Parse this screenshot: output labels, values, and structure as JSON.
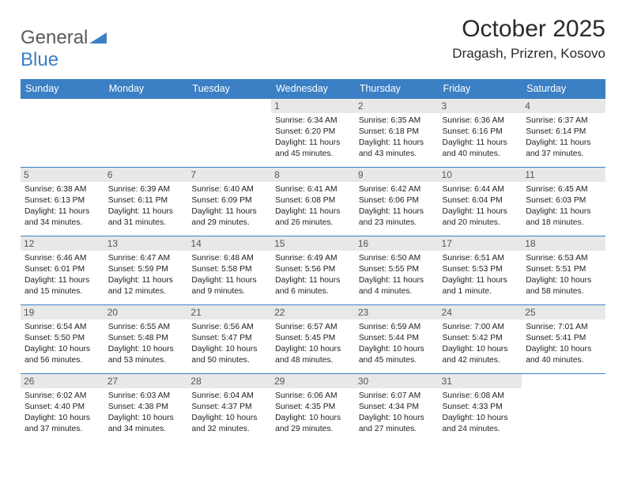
{
  "logo": {
    "text1": "General",
    "text2": "Blue"
  },
  "title": "October 2025",
  "location": "Dragash, Prizren, Kosovo",
  "weekdays": [
    "Sunday",
    "Monday",
    "Tuesday",
    "Wednesday",
    "Thursday",
    "Friday",
    "Saturday"
  ],
  "colors": {
    "header_bg": "#3b7fc4",
    "header_text": "#ffffff",
    "day_bg": "#e8e8e8",
    "border": "#3b7fc4",
    "text": "#222222",
    "logo_gray": "#5a5a5a",
    "logo_blue": "#3b7fc4"
  },
  "fonts": {
    "title_size": 30,
    "location_size": 17,
    "weekday_size": 12.5,
    "day_num_size": 12,
    "body_size": 10.3
  },
  "weeks": [
    [
      null,
      null,
      null,
      {
        "n": "1",
        "sunrise": "6:34 AM",
        "sunset": "6:20 PM",
        "daylight": "11 hours and 45 minutes."
      },
      {
        "n": "2",
        "sunrise": "6:35 AM",
        "sunset": "6:18 PM",
        "daylight": "11 hours and 43 minutes."
      },
      {
        "n": "3",
        "sunrise": "6:36 AM",
        "sunset": "6:16 PM",
        "daylight": "11 hours and 40 minutes."
      },
      {
        "n": "4",
        "sunrise": "6:37 AM",
        "sunset": "6:14 PM",
        "daylight": "11 hours and 37 minutes."
      }
    ],
    [
      {
        "n": "5",
        "sunrise": "6:38 AM",
        "sunset": "6:13 PM",
        "daylight": "11 hours and 34 minutes."
      },
      {
        "n": "6",
        "sunrise": "6:39 AM",
        "sunset": "6:11 PM",
        "daylight": "11 hours and 31 minutes."
      },
      {
        "n": "7",
        "sunrise": "6:40 AM",
        "sunset": "6:09 PM",
        "daylight": "11 hours and 29 minutes."
      },
      {
        "n": "8",
        "sunrise": "6:41 AM",
        "sunset": "6:08 PM",
        "daylight": "11 hours and 26 minutes."
      },
      {
        "n": "9",
        "sunrise": "6:42 AM",
        "sunset": "6:06 PM",
        "daylight": "11 hours and 23 minutes."
      },
      {
        "n": "10",
        "sunrise": "6:44 AM",
        "sunset": "6:04 PM",
        "daylight": "11 hours and 20 minutes."
      },
      {
        "n": "11",
        "sunrise": "6:45 AM",
        "sunset": "6:03 PM",
        "daylight": "11 hours and 18 minutes."
      }
    ],
    [
      {
        "n": "12",
        "sunrise": "6:46 AM",
        "sunset": "6:01 PM",
        "daylight": "11 hours and 15 minutes."
      },
      {
        "n": "13",
        "sunrise": "6:47 AM",
        "sunset": "5:59 PM",
        "daylight": "11 hours and 12 minutes."
      },
      {
        "n": "14",
        "sunrise": "6:48 AM",
        "sunset": "5:58 PM",
        "daylight": "11 hours and 9 minutes."
      },
      {
        "n": "15",
        "sunrise": "6:49 AM",
        "sunset": "5:56 PM",
        "daylight": "11 hours and 6 minutes."
      },
      {
        "n": "16",
        "sunrise": "6:50 AM",
        "sunset": "5:55 PM",
        "daylight": "11 hours and 4 minutes."
      },
      {
        "n": "17",
        "sunrise": "6:51 AM",
        "sunset": "5:53 PM",
        "daylight": "11 hours and 1 minute."
      },
      {
        "n": "18",
        "sunrise": "6:53 AM",
        "sunset": "5:51 PM",
        "daylight": "10 hours and 58 minutes."
      }
    ],
    [
      {
        "n": "19",
        "sunrise": "6:54 AM",
        "sunset": "5:50 PM",
        "daylight": "10 hours and 56 minutes."
      },
      {
        "n": "20",
        "sunrise": "6:55 AM",
        "sunset": "5:48 PM",
        "daylight": "10 hours and 53 minutes."
      },
      {
        "n": "21",
        "sunrise": "6:56 AM",
        "sunset": "5:47 PM",
        "daylight": "10 hours and 50 minutes."
      },
      {
        "n": "22",
        "sunrise": "6:57 AM",
        "sunset": "5:45 PM",
        "daylight": "10 hours and 48 minutes."
      },
      {
        "n": "23",
        "sunrise": "6:59 AM",
        "sunset": "5:44 PM",
        "daylight": "10 hours and 45 minutes."
      },
      {
        "n": "24",
        "sunrise": "7:00 AM",
        "sunset": "5:42 PM",
        "daylight": "10 hours and 42 minutes."
      },
      {
        "n": "25",
        "sunrise": "7:01 AM",
        "sunset": "5:41 PM",
        "daylight": "10 hours and 40 minutes."
      }
    ],
    [
      {
        "n": "26",
        "sunrise": "6:02 AM",
        "sunset": "4:40 PM",
        "daylight": "10 hours and 37 minutes."
      },
      {
        "n": "27",
        "sunrise": "6:03 AM",
        "sunset": "4:38 PM",
        "daylight": "10 hours and 34 minutes."
      },
      {
        "n": "28",
        "sunrise": "6:04 AM",
        "sunset": "4:37 PM",
        "daylight": "10 hours and 32 minutes."
      },
      {
        "n": "29",
        "sunrise": "6:06 AM",
        "sunset": "4:35 PM",
        "daylight": "10 hours and 29 minutes."
      },
      {
        "n": "30",
        "sunrise": "6:07 AM",
        "sunset": "4:34 PM",
        "daylight": "10 hours and 27 minutes."
      },
      {
        "n": "31",
        "sunrise": "6:08 AM",
        "sunset": "4:33 PM",
        "daylight": "10 hours and 24 minutes."
      },
      null
    ]
  ],
  "labels": {
    "sunrise": "Sunrise: ",
    "sunset": "Sunset: ",
    "daylight": "Daylight: "
  }
}
